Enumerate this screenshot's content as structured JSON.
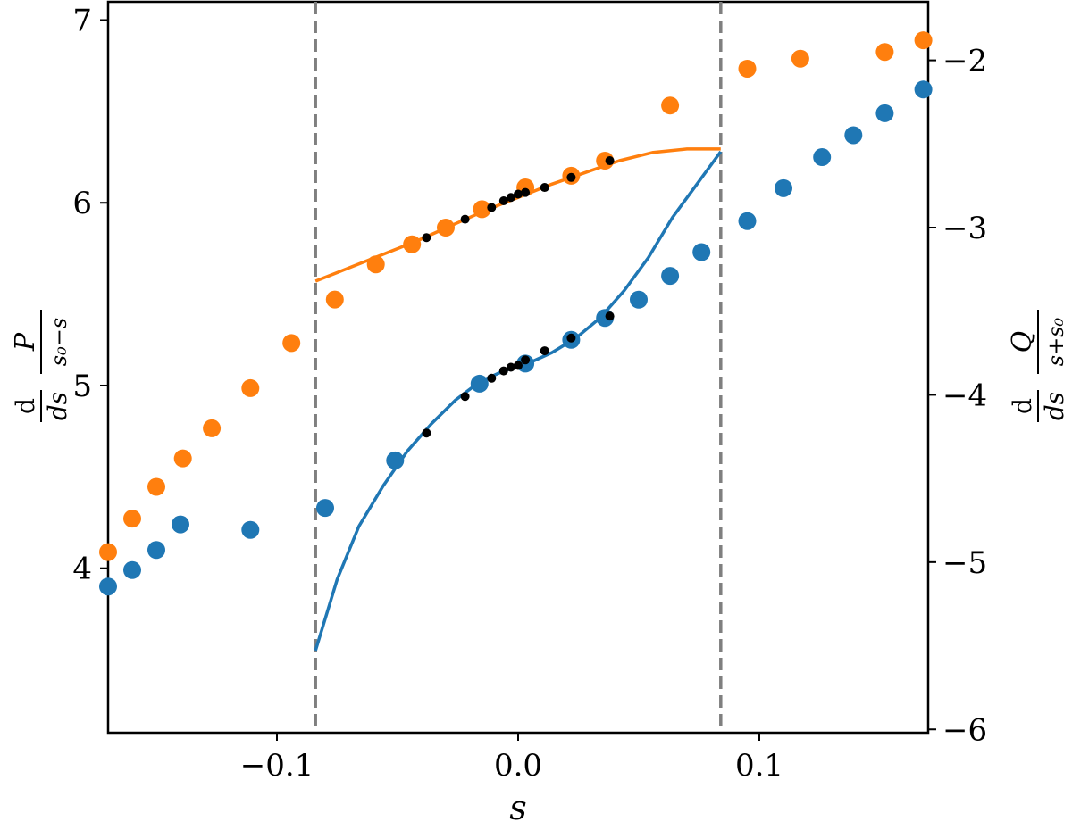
{
  "chart_data": {
    "type": "scatter",
    "title": "",
    "xlabel": "s",
    "ylabel_left": {
      "prefix": "d",
      "denom_prefix": "ds",
      "fn": "P",
      "frac_denom": "s₀−s"
    },
    "ylabel_right": {
      "prefix": "d",
      "denom_prefix": "ds",
      "fn": "Q",
      "frac_denom": "s+s₀"
    },
    "xlim": [
      -0.17,
      0.17
    ],
    "ylim_left": [
      3.1,
      7.1
    ],
    "ylim_right": [
      -6.02,
      -1.65
    ],
    "x_ticks": [
      -0.1,
      0.0,
      0.1
    ],
    "x_tick_labels": [
      "−0.1",
      "0.0",
      "0.1"
    ],
    "y_ticks_left": [
      4,
      5,
      6,
      7
    ],
    "y_tick_labels_left": [
      "4",
      "5",
      "6",
      "7"
    ],
    "y_ticks_right": [
      -6,
      -5,
      -4,
      -3,
      -2
    ],
    "y_tick_labels_right": [
      "−6",
      "−5",
      "−4",
      "−3",
      "−2"
    ],
    "vlines": [
      -0.084,
      0.084
    ],
    "colors": {
      "blue": "#1f77b4",
      "orange": "#ff7f0e",
      "black": "#000000",
      "vline": "#7f7f7f"
    },
    "series": [
      {
        "axis": "left",
        "color": "#1f77b4",
        "kind": "points",
        "x": [
          -0.17,
          -0.16,
          -0.15,
          -0.14,
          -0.111,
          -0.08,
          -0.051,
          -0.016,
          0.003,
          0.022,
          0.036,
          0.05,
          0.063,
          0.076,
          0.095,
          0.11,
          0.126,
          0.139,
          0.152,
          0.168
        ],
        "y": [
          3.9,
          3.99,
          4.1,
          4.24,
          4.21,
          4.33,
          4.59,
          5.01,
          5.12,
          5.25,
          5.37,
          5.47,
          5.6,
          5.73,
          5.9,
          6.08,
          6.25,
          6.37,
          6.49,
          6.62
        ]
      },
      {
        "axis": "right",
        "color": "#ff7f0e",
        "kind": "points",
        "x": [
          -0.17,
          -0.16,
          -0.15,
          -0.139,
          -0.127,
          -0.111,
          -0.094,
          -0.076,
          -0.059,
          -0.044,
          -0.03,
          -0.015,
          0.003,
          0.022,
          0.036,
          0.063,
          0.095,
          0.117,
          0.152,
          0.168
        ],
        "y": [
          -4.94,
          -4.74,
          -4.55,
          -4.38,
          -4.2,
          -3.96,
          -3.69,
          -3.43,
          -3.22,
          -3.1,
          -3.0,
          -2.89,
          -2.76,
          -2.69,
          -2.6,
          -2.27,
          -2.05,
          -1.99,
          -1.95,
          -1.88
        ]
      },
      {
        "axis": "left",
        "color": "#1f77b4",
        "kind": "line",
        "x": [
          -0.084,
          -0.075,
          -0.066,
          -0.056,
          -0.046,
          -0.036,
          -0.026,
          -0.016,
          -0.006,
          0.004,
          0.014,
          0.024,
          0.034,
          0.044,
          0.054,
          0.064,
          0.074,
          0.084
        ],
        "y": [
          3.55,
          3.94,
          4.23,
          4.45,
          4.64,
          4.79,
          4.92,
          5.02,
          5.08,
          5.12,
          5.18,
          5.26,
          5.37,
          5.52,
          5.7,
          5.92,
          6.1,
          6.28
        ]
      },
      {
        "axis": "right",
        "color": "#ff7f0e",
        "kind": "line",
        "x": [
          -0.084,
          -0.07,
          -0.056,
          -0.042,
          -0.028,
          -0.014,
          0.0,
          0.014,
          0.028,
          0.042,
          0.056,
          0.07,
          0.078,
          0.084
        ],
        "y": [
          -3.32,
          -3.24,
          -3.16,
          -3.08,
          -2.99,
          -2.9,
          -2.82,
          -2.74,
          -2.67,
          -2.6,
          -2.55,
          -2.53,
          -2.53,
          -2.53
        ]
      },
      {
        "axis": "left",
        "color": "#000000",
        "kind": "small-points",
        "x": [
          -0.038,
          -0.022,
          -0.011,
          -0.006,
          -0.003,
          0.0,
          0.003,
          0.011,
          0.022,
          0.038
        ],
        "y": [
          4.74,
          4.94,
          5.04,
          5.08,
          5.1,
          5.11,
          5.14,
          5.19,
          5.26,
          5.38
        ]
      },
      {
        "axis": "right",
        "color": "#000000",
        "kind": "small-points",
        "x": [
          -0.038,
          -0.022,
          -0.011,
          -0.006,
          -0.003,
          0.0,
          0.003,
          0.011,
          0.022,
          0.038
        ],
        "y": [
          -3.06,
          -2.95,
          -2.88,
          -2.84,
          -2.82,
          -2.8,
          -2.79,
          -2.76,
          -2.7,
          -2.6
        ]
      }
    ]
  }
}
